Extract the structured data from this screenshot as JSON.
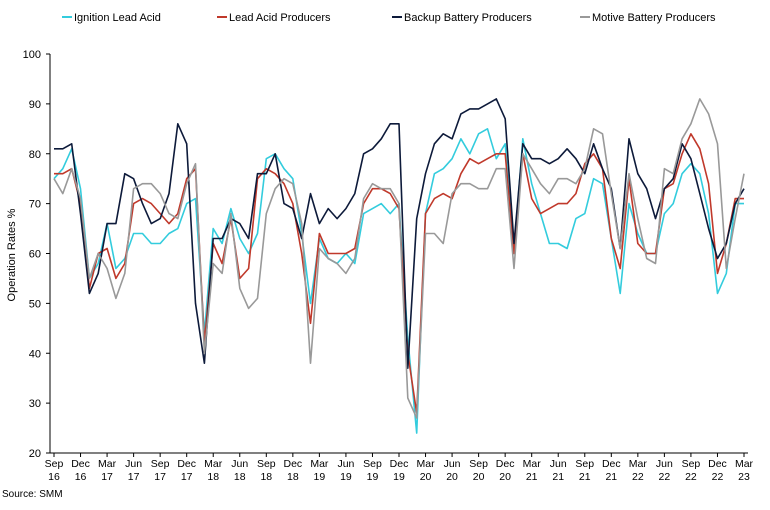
{
  "chart_data": {
    "type": "line",
    "ylabel": "Operation Rates %",
    "source": "Source: SMM",
    "ylim": [
      20,
      100
    ],
    "yticks": [
      20,
      30,
      40,
      50,
      60,
      70,
      80,
      90,
      100
    ],
    "grid": false,
    "legend_position": "top",
    "x_tick_labels": [
      [
        "Sep",
        "16"
      ],
      [
        "Dec",
        "16"
      ],
      [
        "Mar",
        "17"
      ],
      [
        "Jun",
        "17"
      ],
      [
        "Sep",
        "17"
      ],
      [
        "Dec",
        "17"
      ],
      [
        "Mar",
        "18"
      ],
      [
        "Jun",
        "18"
      ],
      [
        "Sep",
        "18"
      ],
      [
        "Dec",
        "18"
      ],
      [
        "Mar",
        "19"
      ],
      [
        "Jun",
        "19"
      ],
      [
        "Sep",
        "19"
      ],
      [
        "Dec",
        "19"
      ],
      [
        "Mar",
        "20"
      ],
      [
        "Jun",
        "20"
      ],
      [
        "Sep",
        "20"
      ],
      [
        "Dec",
        "20"
      ],
      [
        "Mar",
        "21"
      ],
      [
        "Jun",
        "21"
      ],
      [
        "Sep",
        "21"
      ],
      [
        "Dec",
        "21"
      ],
      [
        "Mar",
        "22"
      ],
      [
        "Jun",
        "22"
      ],
      [
        "Sep",
        "22"
      ],
      [
        "Dec",
        "22"
      ],
      [
        "Mar",
        "23"
      ]
    ],
    "x": [
      "2016-09",
      "2016-10",
      "2016-11",
      "2016-12",
      "2017-01",
      "2017-02",
      "2017-03",
      "2017-04",
      "2017-05",
      "2017-06",
      "2017-07",
      "2017-08",
      "2017-09",
      "2017-10",
      "2017-11",
      "2017-12",
      "2018-01",
      "2018-02",
      "2018-03",
      "2018-04",
      "2018-05",
      "2018-06",
      "2018-07",
      "2018-08",
      "2018-09",
      "2018-10",
      "2018-11",
      "2018-12",
      "2019-01",
      "2019-02",
      "2019-03",
      "2019-04",
      "2019-05",
      "2019-06",
      "2019-07",
      "2019-08",
      "2019-09",
      "2019-10",
      "2019-11",
      "2019-12",
      "2020-01",
      "2020-02",
      "2020-03",
      "2020-04",
      "2020-05",
      "2020-06",
      "2020-07",
      "2020-08",
      "2020-09",
      "2020-10",
      "2020-11",
      "2020-12",
      "2021-01",
      "2021-02",
      "2021-03",
      "2021-04",
      "2021-05",
      "2021-06",
      "2021-07",
      "2021-08",
      "2021-09",
      "2021-10",
      "2021-11",
      "2021-12",
      "2022-01",
      "2022-02",
      "2022-03",
      "2022-04",
      "2022-05",
      "2022-06",
      "2022-07",
      "2022-08",
      "2022-09",
      "2022-10",
      "2022-11",
      "2022-12",
      "2023-01",
      "2023-02",
      "2023-03"
    ],
    "series": [
      {
        "name": "Ignition Lead Acid",
        "color": "#33ccdd",
        "values": [
          75,
          77,
          81,
          73,
          55,
          58,
          66,
          57,
          59,
          64,
          64,
          62,
          62,
          64,
          65,
          70,
          71,
          44,
          65,
          62,
          69,
          63,
          60,
          64,
          79,
          80,
          77,
          75,
          64,
          50,
          63,
          59,
          58,
          60,
          58,
          68,
          69,
          70,
          68,
          70,
          43,
          24,
          68,
          76,
          77,
          79,
          83,
          80,
          84,
          85,
          79,
          82,
          60,
          83,
          74,
          68,
          62,
          62,
          61,
          67,
          68,
          75,
          74,
          63,
          52,
          70,
          64,
          60,
          60,
          68,
          70,
          76,
          78,
          76,
          68,
          52,
          56,
          70,
          70
        ]
      },
      {
        "name": "Lead Acid Producers",
        "color": "#c0392b",
        "values": [
          76,
          76,
          77,
          70,
          53,
          60,
          61,
          55,
          58,
          70,
          71,
          70,
          68,
          66,
          68,
          75,
          77,
          42,
          62,
          58,
          67,
          55,
          57,
          75,
          77,
          76,
          74,
          70,
          60,
          46,
          64,
          60,
          60,
          60,
          61,
          70,
          73,
          73,
          72,
          69,
          40,
          28,
          68,
          71,
          72,
          71,
          76,
          79,
          78,
          79,
          80,
          80,
          60,
          80,
          71,
          68,
          69,
          70,
          70,
          72,
          78,
          80,
          77,
          63,
          57,
          75,
          62,
          60,
          60,
          73,
          74,
          80,
          84,
          81,
          74,
          56,
          62,
          71,
          71
        ]
      },
      {
        "name": "Backup Battery Producers",
        "color": "#0d1a3a",
        "values": [
          81,
          81,
          82,
          68,
          52,
          56,
          66,
          66,
          76,
          75,
          70,
          66,
          67,
          72,
          86,
          82,
          50,
          38,
          63,
          63,
          67,
          66,
          63,
          76,
          76,
          80,
          70,
          69,
          63,
          72,
          66,
          69,
          67,
          69,
          72,
          80,
          81,
          83,
          86,
          86,
          37,
          67,
          76,
          82,
          84,
          83,
          88,
          89,
          89,
          90,
          91,
          87,
          62,
          82,
          79,
          79,
          78,
          79,
          81,
          79,
          76,
          82,
          77,
          73,
          61,
          83,
          76,
          73,
          67,
          73,
          75,
          82,
          79,
          72,
          65,
          59,
          62,
          70,
          73
        ]
      },
      {
        "name": "Motive Battery Producers",
        "color": "#999999",
        "values": [
          75,
          72,
          77,
          71,
          55,
          60,
          57,
          51,
          56,
          73,
          74,
          74,
          72,
          68,
          67,
          74,
          78,
          40,
          58,
          56,
          68,
          53,
          49,
          51,
          68,
          73,
          75,
          74,
          66,
          38,
          61,
          59,
          58,
          56,
          59,
          71,
          74,
          73,
          73,
          70,
          31,
          27,
          64,
          64,
          62,
          72,
          74,
          74,
          73,
          73,
          77,
          77,
          57,
          80,
          77,
          74,
          72,
          75,
          75,
          74,
          77,
          85,
          84,
          72,
          61,
          76,
          67,
          59,
          58,
          77,
          76,
          83,
          86,
          91,
          88,
          82,
          57,
          67,
          76
        ]
      }
    ]
  }
}
